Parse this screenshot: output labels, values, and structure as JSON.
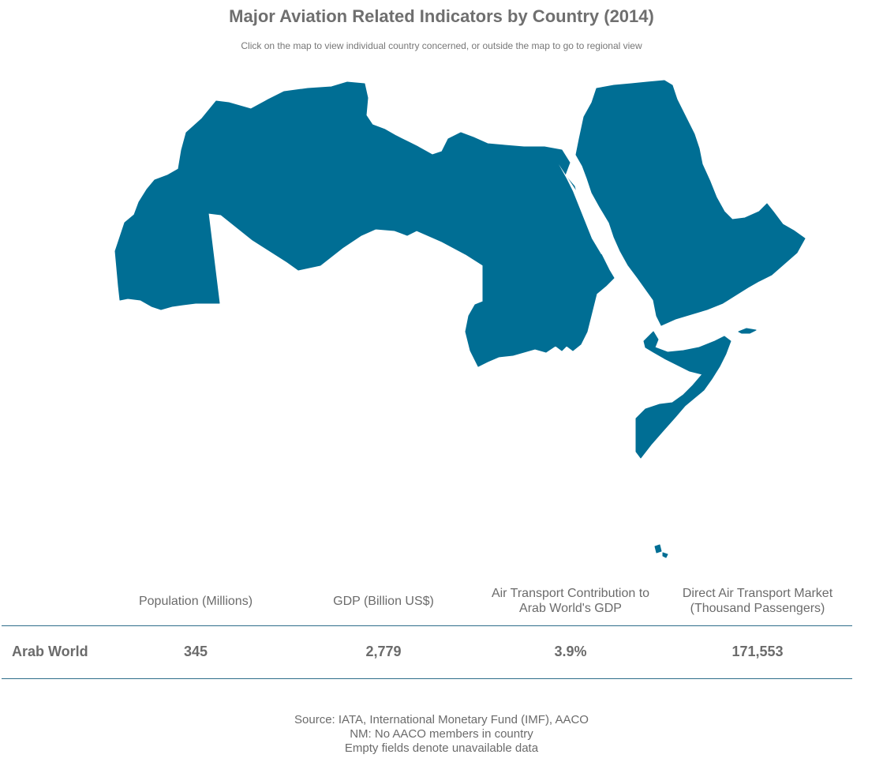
{
  "title": "Major Aviation Related Indicators by Country (2014)",
  "subtitle": "Click on the map to view individual country concerned, or outside the map to go to regional view",
  "map": {
    "fill_color": "#006e94",
    "regions": [
      "north-africa",
      "sudan",
      "arabian-peninsula",
      "horn-of-africa",
      "comoros"
    ]
  },
  "table": {
    "headers": [
      "Population (Millions)",
      "GDP (Billion US$)",
      "Air Transport Contribution to Arab World's GDP",
      "Direct Air Transport Market (Thousand Passengers)"
    ],
    "row": {
      "label": "Arab World",
      "values": [
        "345",
        "2,779",
        "3.9%",
        "171,553"
      ]
    }
  },
  "footnotes": [
    "Source: IATA, International Monetary Fund (IMF), AACO",
    "NM: No AACO members in country",
    "Empty fields denote unavailable data"
  ],
  "colors": {
    "accent": "#006e94",
    "rule": "#2e6e8a",
    "text": "#6b6b6b"
  }
}
